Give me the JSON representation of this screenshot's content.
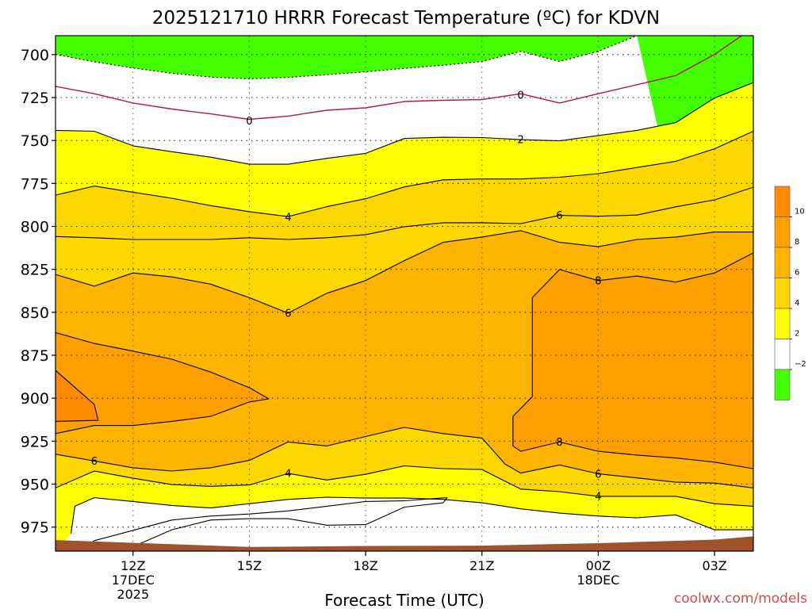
{
  "chart_data": {
    "type": "heatmap",
    "title": "2025121710 HRRR Forecast Temperature (ºC) for KDVN",
    "xlabel": "Forecast Time (UTC)",
    "ylabel": "",
    "watermark": "coolwx.com/models",
    "y_ticks": [
      700,
      725,
      750,
      775,
      800,
      825,
      850,
      875,
      900,
      925,
      950,
      975
    ],
    "ylim": [
      689,
      989
    ],
    "x_range_hours": [
      10,
      28
    ],
    "x_ticks": [
      {
        "hour": 12,
        "lines": [
          "12Z",
          "17DEC",
          "2025"
        ]
      },
      {
        "hour": 15,
        "lines": [
          "15Z"
        ]
      },
      {
        "hour": 18,
        "lines": [
          "18Z"
        ]
      },
      {
        "hour": 21,
        "lines": [
          "21Z"
        ]
      },
      {
        "hour": 24,
        "lines": [
          "00Z",
          "18DEC"
        ]
      },
      {
        "hour": 27,
        "lines": [
          "03Z"
        ]
      }
    ],
    "grid": true,
    "legend": {
      "placement": "right",
      "labels": [
        "10",
        "8",
        "6",
        "4",
        "2",
        "−2"
      ],
      "colors": [
        "#ff8c00",
        "#ffa000",
        "#ffb400",
        "#ffd700",
        "#ffff00",
        "#ffffff",
        "#44ff00"
      ]
    },
    "colors": {
      "below_neg2": "#44ff00",
      "neg2_2": "#ffffff",
      "2_4": "#ffff00",
      "4_6": "#ffd700",
      "6_8": "#ffb400",
      "8_10": "#ffa000",
      "above_10": "#ff8c00",
      "ground": "#a0522d",
      "zero_line": "#b4145a"
    },
    "isotherms": [
      {
        "value": "-2",
        "points": [
          [
            10,
            699.9
          ],
          [
            11,
            704.2
          ],
          [
            12,
            707.8
          ],
          [
            13,
            710.9
          ],
          [
            14,
            713.1
          ],
          [
            15,
            714.1
          ],
          [
            16,
            713.3
          ],
          [
            17,
            711.7
          ],
          [
            18,
            710
          ],
          [
            19,
            708
          ],
          [
            20,
            706.2
          ],
          [
            21,
            704
          ],
          [
            22,
            698.1
          ],
          [
            23,
            704
          ],
          [
            24,
            698.1
          ],
          [
            25,
            689
          ]
        ]
      },
      {
        "value": "0",
        "points": [
          [
            10,
            718.5
          ],
          [
            11,
            722.8
          ],
          [
            12,
            728.2
          ],
          [
            13,
            731.7
          ],
          [
            14,
            734.5
          ],
          [
            15,
            737.7
          ],
          [
            16,
            735.8
          ],
          [
            17,
            732.4
          ],
          [
            18,
            731
          ],
          [
            19,
            727.3
          ],
          [
            20,
            726.6
          ],
          [
            21,
            726.2
          ],
          [
            22,
            722.8
          ],
          [
            23,
            728.2
          ],
          [
            24,
            722.8
          ],
          [
            25,
            717.5
          ],
          [
            26,
            712.2
          ],
          [
            27,
            699.9
          ],
          [
            27.7,
            689
          ]
        ]
      },
      {
        "value": "2",
        "points": [
          [
            10,
            744.1
          ],
          [
            11,
            744.6
          ],
          [
            12,
            753.1
          ],
          [
            13,
            756.5
          ],
          [
            14,
            759.7
          ],
          [
            15,
            763.8
          ],
          [
            16,
            763.8
          ],
          [
            17,
            760.4
          ],
          [
            18,
            757.5
          ],
          [
            19,
            748.8
          ],
          [
            20,
            748.1
          ],
          [
            21,
            748.3
          ],
          [
            22,
            749.5
          ],
          [
            23,
            750.2
          ],
          [
            24,
            747.1
          ],
          [
            25,
            744.1
          ],
          [
            26,
            739.6
          ],
          [
            27,
            725.3
          ],
          [
            28,
            716.3
          ]
        ]
      },
      {
        "value": "4",
        "points": [
          [
            10,
            781.8
          ],
          [
            11,
            776.5
          ],
          [
            12,
            780.1
          ],
          [
            13,
            783.6
          ],
          [
            14,
            787.9
          ],
          [
            15,
            791.4
          ],
          [
            16,
            794.3
          ],
          [
            17,
            788.5
          ],
          [
            18,
            783.9
          ],
          [
            19,
            777
          ],
          [
            20,
            772.9
          ],
          [
            21,
            772.4
          ],
          [
            22,
            772.4
          ],
          [
            23,
            771.4
          ],
          [
            24,
            769.3
          ],
          [
            25,
            765.7
          ],
          [
            26,
            762.1
          ],
          [
            27,
            754.8
          ],
          [
            28,
            744.6
          ]
        ]
      },
      {
        "value": "6",
        "points": [
          [
            10,
            805.9
          ],
          [
            11,
            806.6
          ],
          [
            12,
            807.6
          ],
          [
            13,
            807.6
          ],
          [
            14,
            807.6
          ],
          [
            15,
            806.6
          ],
          [
            16,
            807.6
          ],
          [
            17,
            806.6
          ],
          [
            18,
            804.8
          ],
          [
            19,
            800.2
          ],
          [
            20,
            797.9
          ],
          [
            21,
            797.9
          ],
          [
            22,
            798.4
          ],
          [
            23,
            793.6
          ],
          [
            24,
            794.1
          ],
          [
            25,
            793.4
          ],
          [
            26,
            788.6
          ],
          [
            27,
            784.6
          ],
          [
            28,
            777.2
          ]
        ]
      },
      {
        "value": "6",
        "points": [
          [
            10,
            828
          ],
          [
            11,
            834.8
          ],
          [
            12,
            827.1
          ],
          [
            13,
            829.4
          ],
          [
            14,
            833.6
          ],
          [
            15,
            841.5
          ],
          [
            16,
            850.5
          ],
          [
            17,
            838.9
          ],
          [
            18,
            831.5
          ],
          [
            19,
            819.9
          ],
          [
            20,
            809.3
          ],
          [
            21,
            806.2
          ],
          [
            22,
            802.5
          ],
          [
            23,
            809.3
          ],
          [
            24,
            811.8
          ],
          [
            25,
            807.6
          ],
          [
            26,
            806.2
          ],
          [
            27,
            803.3
          ],
          [
            28,
            803.3
          ]
        ]
      },
      {
        "value": "8",
        "points": [
          [
            10,
            861.8
          ],
          [
            11,
            868.1
          ],
          [
            12,
            872.6
          ],
          [
            13,
            877.3
          ],
          [
            14,
            884.8
          ],
          [
            15,
            893.9
          ],
          [
            15.5,
            900.4
          ],
          [
            15,
            902.2
          ],
          [
            14,
            910.6
          ],
          [
            13,
            913.5
          ],
          [
            12,
            915.9
          ],
          [
            11,
            915.9
          ],
          [
            10,
            920.6
          ]
        ]
      },
      {
        "value": "8",
        "points": [
          [
            28,
            815.4
          ],
          [
            27,
            827.1
          ],
          [
            26,
            832.4
          ],
          [
            25,
            828.9
          ],
          [
            24,
            831.5
          ],
          [
            23,
            825.1
          ],
          [
            22.3,
            841.5
          ],
          [
            22.3,
            899.1
          ],
          [
            21.8,
            910.6
          ],
          [
            21.8,
            927.8
          ],
          [
            22,
            930.9
          ],
          [
            23,
            925.5
          ],
          [
            24,
            930.9
          ],
          [
            25,
            933.1
          ],
          [
            26,
            934.8
          ],
          [
            27,
            937.2
          ],
          [
            28,
            941
          ]
        ]
      },
      {
        "value": "10",
        "points": [
          [
            10,
            883.8
          ],
          [
            11,
            903.6
          ],
          [
            11.1,
            912.9
          ],
          [
            10,
            913.5
          ]
        ]
      },
      {
        "value": "6",
        "points": [
          [
            10,
            932.6
          ],
          [
            11,
            936.5
          ],
          [
            12,
            940.5
          ],
          [
            13,
            942.4
          ],
          [
            14,
            940.5
          ],
          [
            15,
            936.2
          ],
          [
            16,
            925.5
          ],
          [
            17,
            927.8
          ],
          [
            18,
            922.3
          ],
          [
            19,
            917
          ],
          [
            20,
            920.6
          ],
          [
            21,
            923.2
          ],
          [
            21.6,
            938.4
          ],
          [
            22,
            943.6
          ],
          [
            23,
            938.9
          ],
          [
            24,
            944
          ],
          [
            25,
            946.4
          ],
          [
            26,
            948.9
          ],
          [
            27,
            949.4
          ],
          [
            28,
            952.2
          ]
        ]
      },
      {
        "value": "4",
        "points": [
          [
            10,
            952.2
          ],
          [
            11,
            942.4
          ],
          [
            12,
            946.6
          ],
          [
            13,
            950.3
          ],
          [
            14,
            951.3
          ],
          [
            15,
            950.5
          ],
          [
            16,
            943.8
          ],
          [
            17,
            947.6
          ],
          [
            18,
            944.3
          ],
          [
            19,
            939.4
          ],
          [
            20,
            941
          ],
          [
            21,
            941.5
          ],
          [
            22,
            952.9
          ],
          [
            23,
            954.4
          ],
          [
            24,
            957.1
          ],
          [
            25,
            957.1
          ],
          [
            26,
            957.1
          ],
          [
            27,
            961.4
          ],
          [
            28,
            962.9
          ]
        ]
      },
      {
        "value": "2",
        "points": [
          [
            10.4,
            978.7
          ],
          [
            10.5,
            962.9
          ],
          [
            11,
            957.9
          ],
          [
            12,
            960.1
          ],
          [
            13,
            962.4
          ],
          [
            14,
            963.9
          ],
          [
            15,
            961.4
          ],
          [
            16,
            958.9
          ],
          [
            17,
            957.6
          ],
          [
            18,
            958.1
          ],
          [
            19,
            958.1
          ],
          [
            20,
            958.9
          ],
          [
            21,
            960.9
          ],
          [
            22,
            964.4
          ],
          [
            23,
            966.9
          ],
          [
            24,
            968.6
          ],
          [
            25,
            969.6
          ],
          [
            26,
            967.9
          ],
          [
            27,
            976.6
          ],
          [
            28,
            976.6
          ]
        ]
      },
      {
        "value": "2",
        "points": [
          [
            12,
            986.4
          ],
          [
            13,
            976.6
          ],
          [
            14,
            970.9
          ],
          [
            15,
            970.1
          ],
          [
            16,
            970.1
          ],
          [
            17,
            973.9
          ],
          [
            18,
            973.6
          ],
          [
            19,
            963.4
          ],
          [
            20,
            960.9
          ],
          [
            20.1,
            957.9
          ],
          [
            19,
            959.7
          ],
          [
            18,
            960.1
          ],
          [
            17,
            962.9
          ],
          [
            16,
            965.6
          ],
          [
            15,
            967.4
          ],
          [
            14,
            968.6
          ],
          [
            13,
            970.9
          ],
          [
            12,
            976.9
          ],
          [
            11,
            982.9
          ],
          [
            10.8,
            986.4
          ]
        ]
      }
    ],
    "ground": [
      [
        10,
        982.6
      ],
      [
        15,
        986.6
      ],
      [
        18,
        986
      ],
      [
        21,
        985.8
      ],
      [
        24,
        984.4
      ],
      [
        27,
        982.3
      ],
      [
        28,
        980.4
      ]
    ],
    "contour_labels": [
      {
        "text": "0",
        "hour": 15,
        "p": 738.6
      },
      {
        "text": "0",
        "hour": 22,
        "p": 723.6
      },
      {
        "text": "2",
        "hour": 22,
        "p": 749.5
      },
      {
        "text": "4",
        "hour": 16,
        "p": 794.8
      },
      {
        "text": "6",
        "hour": 23,
        "p": 793.6
      },
      {
        "text": "6",
        "hour": 16,
        "p": 850.5
      },
      {
        "text": "8",
        "hour": 24,
        "p": 831.5
      },
      {
        "text": "8",
        "hour": 23,
        "p": 925.5
      },
      {
        "text": "6",
        "hour": 11,
        "p": 936.5
      },
      {
        "text": "4",
        "hour": 16,
        "p": 943.8
      },
      {
        "text": "6",
        "hour": 24,
        "p": 944.3
      },
      {
        "text": "4",
        "hour": 24,
        "p": 957.1
      }
    ]
  }
}
